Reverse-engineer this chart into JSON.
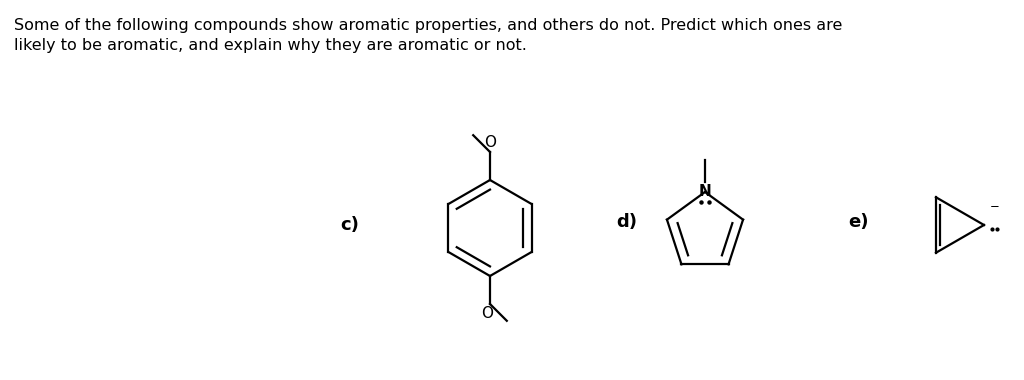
{
  "title_line1": "Some of the following compounds show aromatic properties, and others do not. Predict which ones are",
  "title_line2": "likely to be aromatic, and explain why they are aromatic or not.",
  "labels": [
    "c)",
    "d)",
    "e)"
  ],
  "bg_color": "#ffffff",
  "text_color": "#000000",
  "line_color": "#000000",
  "title_fontsize": 11.5,
  "label_fontsize": 13,
  "label_fontsize_bold": true
}
